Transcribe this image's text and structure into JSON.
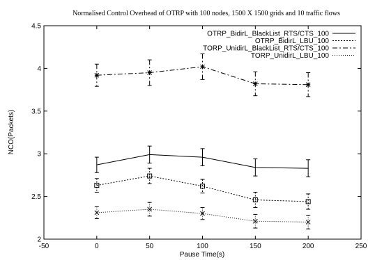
{
  "chart_data": {
    "type": "line",
    "title": "Normalised Control Overhead of OTRP with 100 nodes, 1500 X 1500 grids  and 10 traffic flows",
    "xlabel": "Pause Time(s)",
    "ylabel": "NCO(Packets)",
    "xlim": [
      -50,
      250
    ],
    "ylim": [
      2,
      4.5
    ],
    "xticks": [
      -50,
      0,
      50,
      100,
      150,
      200,
      250
    ],
    "yticks": [
      2,
      2.5,
      3,
      3.5,
      4,
      4.5
    ],
    "x": [
      0,
      50,
      100,
      150,
      200
    ],
    "grid": false,
    "legend_position": "top-right",
    "series": [
      {
        "name": "OTRP_BidirL_BlackList_RTS/CTS_100",
        "values": [
          2.87,
          2.99,
          2.96,
          2.84,
          2.83
        ],
        "errors": [
          0.09,
          0.1,
          0.1,
          0.1,
          0.1
        ],
        "marker": "none",
        "dash": "solid"
      },
      {
        "name": "OTRP_BidirL_LBU_100",
        "values": [
          2.63,
          2.74,
          2.62,
          2.46,
          2.44
        ],
        "errors": [
          0.08,
          0.09,
          0.08,
          0.09,
          0.09
        ],
        "marker": "square",
        "dash": "dot"
      },
      {
        "name": "TORP_UnidirL_BlackList_RTS/CTS_100",
        "values": [
          3.92,
          3.95,
          4.02,
          3.82,
          3.81
        ],
        "errors": [
          0.13,
          0.15,
          0.15,
          0.14,
          0.14
        ],
        "marker": "star",
        "dash": "dashdot"
      },
      {
        "name": "TORP_UnidirL_LBU_100",
        "values": [
          2.31,
          2.35,
          2.3,
          2.21,
          2.2
        ],
        "errors": [
          0.07,
          0.08,
          0.07,
          0.08,
          0.08
        ],
        "marker": "x",
        "dash": "densedot"
      }
    ]
  }
}
